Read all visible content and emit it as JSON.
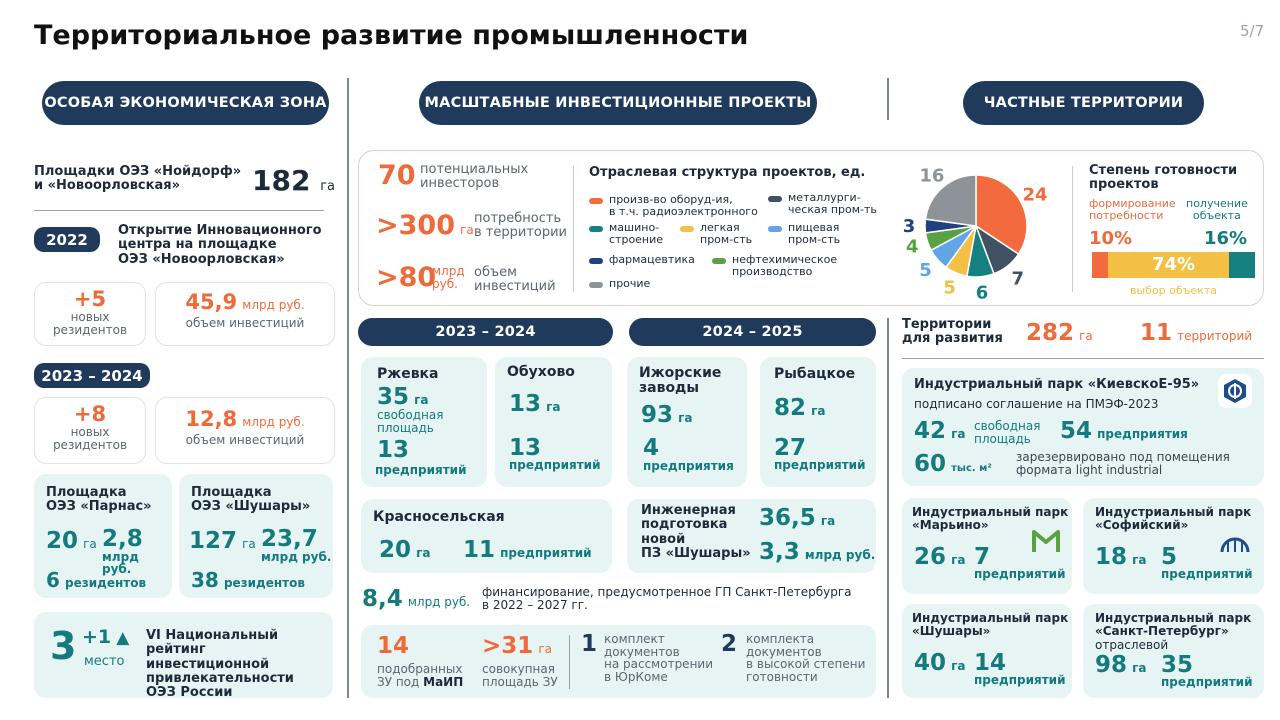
{
  "header": {
    "title": "Территориальное развитие промышленности",
    "page": "5/7"
  },
  "pills": {
    "oez": "ОСОБАЯ ЭКОНОМИЧЕСКАЯ ЗОНА",
    "mip": "МАСШТАБНЫЕ ИНВЕСТИЦИОННЫЕ ПРОЕКТЫ",
    "chast": "ЧАСТНЫЕ ТЕРРИТОРИИ"
  },
  "oez": {
    "sites_label1": "Площадки ОЭЗ «Нойдорф»",
    "sites_label2": "и «Новоорловская»",
    "sites_value": "182",
    "sites_unit": "га",
    "y2022": "2022",
    "y2022_text1": "Открытие Инновационного",
    "y2022_text2": "центра на площадке",
    "y2022_text3": "ОЭЗ «Новоорловская»",
    "res1_value": "+5",
    "res1_l1": "новых",
    "res1_l2": "резидентов",
    "inv1_value": "45,9",
    "inv1_unit": "млрд руб.",
    "inv1_label": "объем инвестиций",
    "y2324": "2023 – 2024",
    "res2_value": "+8",
    "res2_l1": "новых",
    "res2_l2": "резидентов",
    "inv2_value": "12,8",
    "inv2_unit": "млрд руб.",
    "inv2_label": "объем инвестиций",
    "parnas_t1": "Площадка",
    "parnas_t2": "ОЭЗ «Парнас»",
    "parnas_area": "20",
    "parnas_area_u": "га",
    "parnas_inv": "2,8",
    "parnas_inv_u1": "млрд руб.",
    "parnas_res": "6",
    "parnas_res_u": "резидентов",
    "shush_t1": "Площадка",
    "shush_t2": "ОЭЗ «Шушары»",
    "shush_area": "127",
    "shush_area_u": "га",
    "shush_inv": "23,7",
    "shush_inv_u1": "млрд руб.",
    "shush_res": "38",
    "shush_res_u": "резидентов",
    "rank_value": "3",
    "rank_delta": "+1",
    "rank_delta_l": "место",
    "rank_t1": "VI Национальный",
    "rank_t2": "рейтинг инвестиционной",
    "rank_t3": "привлекательности",
    "rank_t4": "ОЭЗ России"
  },
  "mip": {
    "s1_value": "70",
    "s1_l1": "потенциальных",
    "s1_l2": "инвесторов",
    "s2_value": ">300",
    "s2_unit": "га",
    "s2_l1": "потребность",
    "s2_l2": "в территории",
    "s3_value": ">80",
    "s3_unit1": "млрд",
    "s3_unit2": "руб.",
    "s3_l1": "объем",
    "s3_l2": "инвестиций",
    "struct_title": "Отраслевая структура проектов, ед.",
    "ready_title1": "Степень готовности",
    "ready_title2": "проектов",
    "ready_l1a": "формирование",
    "ready_l1b": "потребности",
    "ready_l2a": "получение",
    "ready_l2b": "объекта",
    "ready_l3": "выбор объекта",
    "ready_v1": "10%",
    "ready_v2": "16%",
    "ready_v3": "74%",
    "p2324": "2023 – 2024",
    "p2425": "2024 – 2025",
    "rzh_t": "Ржевка",
    "rzh_a": "35",
    "rzh_au": "га",
    "rzh_al1": "свободная",
    "rzh_al2": "площадь",
    "rzh_p": "13",
    "rzh_pu": "предприятий",
    "obu_t": "Обухово",
    "obu_a": "13",
    "obu_au": "га",
    "obu_p": "13",
    "obu_pu": "предприятий",
    "izh_t1": "Ижорские",
    "izh_t2": "заводы",
    "izh_a": "93",
    "izh_au": "га",
    "izh_p": "4",
    "izh_pu": "предприятия",
    "ryb_t": "Рыбацкое",
    "ryb_a": "82",
    "ryb_au": "га",
    "ryb_p": "27",
    "ryb_pu": "предприятий",
    "kr_t": "Красносельская",
    "kr_a": "20",
    "kr_au": "га",
    "kr_p": "11",
    "kr_pu": "предприятий",
    "eng_t1": "Инженерная",
    "eng_t2": "подготовка",
    "eng_t3": "новой",
    "eng_t4": "ПЗ «Шушары»",
    "eng_a": "36,5",
    "eng_au": "га",
    "eng_m": "3,3",
    "eng_mu": "млрд руб.",
    "fin_value": "8,4",
    "fin_unit": "млрд руб.",
    "fin_l1": "финансирование, предусмотренное ГП Санкт-Петербурга",
    "fin_l2": "в 2022 – 2027 гг.",
    "zu_v": "14",
    "zu_l1": "подобранных",
    "zu_l2": "ЗУ под",
    "zu_l2b": "МаИП",
    "zs_v": ">31",
    "zs_u": "га",
    "zs_l1": "совокупная",
    "zs_l2": "площадь ЗУ",
    "k1_v": "1",
    "k1_l1": "комплект",
    "k1_l2": "документов",
    "k1_l3": "на рассмотрении",
    "k1_l4": "в ЮрКоме",
    "k2_v": "2",
    "k2_l1": "комплекта",
    "k2_l2": "документов",
    "k2_l3": "в высокой степени",
    "k2_l4": "готовности"
  },
  "chast": {
    "terr_l1": "Территории",
    "terr_l2": "для развития",
    "terr_area": "282",
    "terr_area_u": "га",
    "terr_cnt": "11",
    "terr_cnt_u": "территорий",
    "kiev_t": "Индустриальный парк «КиевскоЕ-95»",
    "kiev_s": "подписано соглашение на ПМЭФ-2023",
    "kiev_a": "42",
    "kiev_au": "га",
    "kiev_al1": "свободная",
    "kiev_al2": "площадь",
    "kiev_p": "54",
    "kiev_pu": "предприятия",
    "kiev_m": "60",
    "kiev_mu": "тыс. м²",
    "kiev_ml1": "зарезервировано под помещения",
    "kiev_ml2": "формата  light industrial",
    "mar_t1": "Индустриальный парк",
    "mar_t2": "«Марьино»",
    "mar_a": "26",
    "mar_au": "га",
    "mar_p": "7",
    "mar_pu": "предприятий",
    "sof_t1": "Индустриальный парк",
    "sof_t2": "«Софийский»",
    "sof_a": "18",
    "sof_au": "га",
    "sof_p": "5",
    "sof_pu": "предприятий",
    "shu_t1": "Индустриальный парк",
    "shu_t2": "«Шушары»",
    "shu_a": "40",
    "shu_au": "га",
    "shu_p": "14",
    "shu_pu": "предприятий",
    "spb_t1": "Индустриальный парк",
    "spb_t2": "«Санкт-Петербург»",
    "spb_t3": "отраслевой",
    "spb_a": "98",
    "spb_au": "га",
    "spb_p": "35",
    "spb_pu": "предприятий"
  },
  "chart_data": {
    "type": "pie",
    "title": "Отраслевая структура проектов, ед.",
    "slices": [
      {
        "label": "произв-во оборуд-ия, в т.ч. радиоэлектронного",
        "value": 24,
        "color": "#f26a3d"
      },
      {
        "label": "металлургическая пром-ть",
        "value": 7,
        "color": "#3f5163"
      },
      {
        "label": "машиностроение",
        "value": 6,
        "color": "#14807f"
      },
      {
        "label": "легкая пром-сть",
        "value": 5,
        "color": "#f4bf45"
      },
      {
        "label": "пищевая пром-сть",
        "value": 5,
        "color": "#62a5e6"
      },
      {
        "label": "нефтехимическое производство",
        "value": 4,
        "color": "#5aa144"
      },
      {
        "label": "фармацевтика",
        "value": 3,
        "color": "#233f80"
      },
      {
        "label": "прочие",
        "value": 16,
        "color": "#8d9399"
      }
    ],
    "legend": [
      {
        "l1": "произв-во оборуд-ия,",
        "l2": "в т.ч. радиоэлектронного",
        "color": "#f26a3d"
      },
      {
        "l1": "металлурги-",
        "l2": "ческая пром-ть",
        "color": "#3f5163"
      },
      {
        "l1": "машино-",
        "l2": "строение",
        "color": "#14807f"
      },
      {
        "l1": "легкая",
        "l2": "пром-сть",
        "color": "#f4bf45"
      },
      {
        "l1": "пищевая",
        "l2": "пром-сть",
        "color": "#62a5e6"
      },
      {
        "l1": "фармацевтика",
        "l2": "",
        "color": "#233f80"
      },
      {
        "l1": "нефтехимическое",
        "l2": "производство",
        "color": "#5aa144"
      },
      {
        "l1": "прочие",
        "l2": "",
        "color": "#8d9399"
      }
    ],
    "readiness": {
      "type": "stacked-bar",
      "segments": [
        {
          "label": "формирование потребности",
          "value": 10,
          "color": "#f26a3d"
        },
        {
          "label": "выбор объекта",
          "value": 74,
          "color": "#f4bf45"
        },
        {
          "label": "получение объекта",
          "value": 16,
          "color": "#14807f"
        }
      ]
    }
  }
}
